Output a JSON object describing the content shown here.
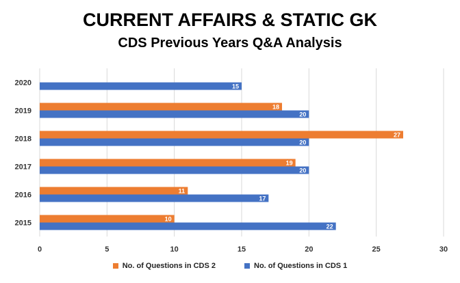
{
  "chart_data": {
    "type": "bar",
    "orientation": "horizontal",
    "title": "CURRENT AFFAIRS & STATIC GK",
    "subtitle": "CDS Previous Years Q&A Analysis",
    "categories": [
      "2015",
      "2016",
      "2017",
      "2018",
      "2019",
      "2020"
    ],
    "series": [
      {
        "name": "No. of Questions in CDS 2",
        "color": "#ED7D31",
        "values": [
          10,
          11,
          19,
          27,
          18,
          null
        ]
      },
      {
        "name": "No. of Questions in CDS 1",
        "color": "#4472C4",
        "values": [
          22,
          17,
          20,
          20,
          20,
          15
        ]
      }
    ],
    "xlim": [
      0,
      30
    ],
    "xticks": [
      0,
      5,
      10,
      15,
      20,
      25,
      30
    ],
    "grid": "vertical",
    "legend": "bottom",
    "data_labels": true
  }
}
